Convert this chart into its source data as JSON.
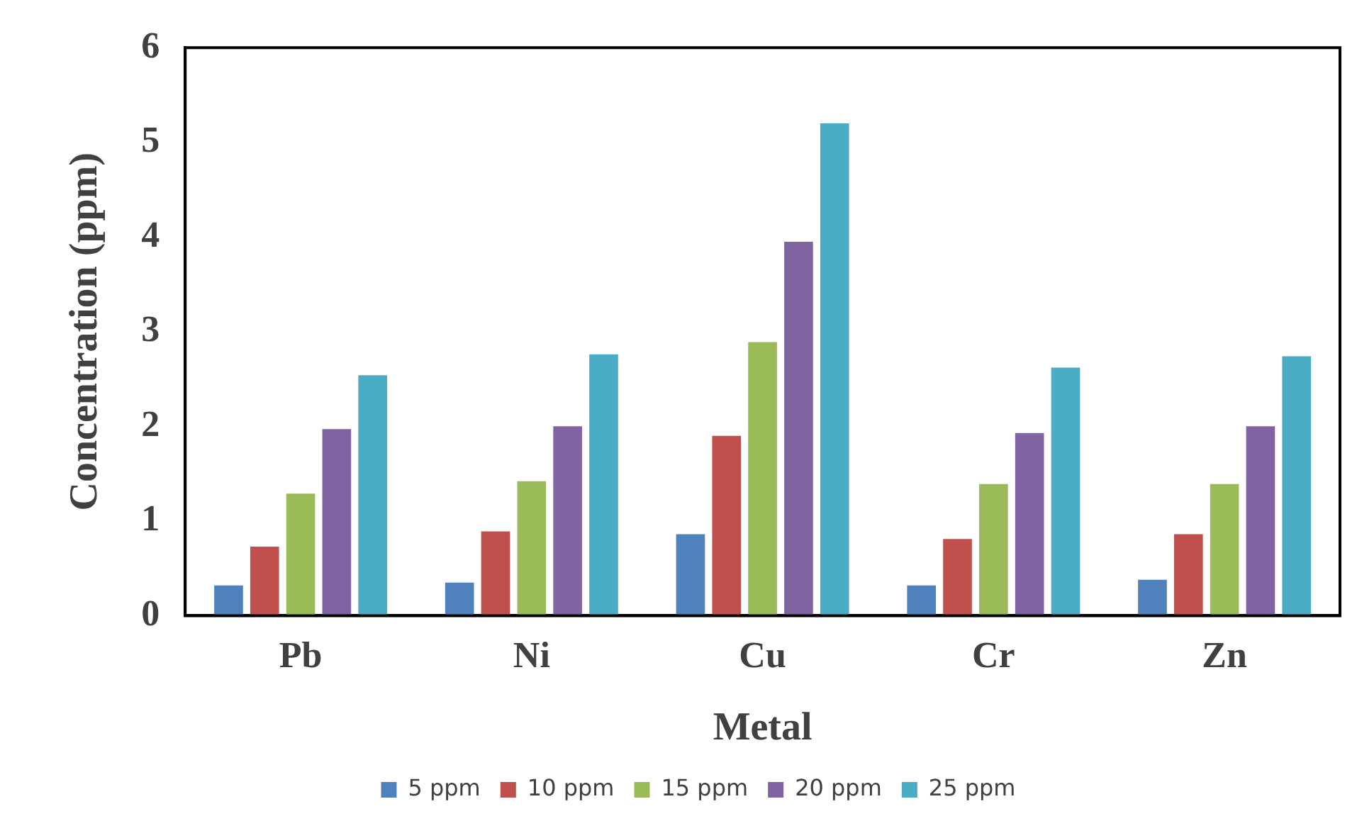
{
  "chart_data": {
    "type": "bar",
    "xlabel": "Metal",
    "ylabel": "Concentration (ppm)",
    "categories": [
      "Pb",
      "Ni",
      "Cu",
      "Cr",
      "Zn"
    ],
    "series": [
      {
        "name": "5 ppm",
        "color": "#4f81bd",
        "values": [
          0.32,
          0.35,
          0.86,
          0.32,
          0.38
        ]
      },
      {
        "name": "10 ppm",
        "color": "#c0504d",
        "values": [
          0.73,
          0.89,
          1.9,
          0.81,
          0.86
        ]
      },
      {
        "name": "15 ppm",
        "color": "#9bbb59",
        "values": [
          1.29,
          1.42,
          2.89,
          1.39,
          1.39
        ]
      },
      {
        "name": "20 ppm",
        "color": "#8064a2",
        "values": [
          1.97,
          2.0,
          3.95,
          1.93,
          2.0
        ]
      },
      {
        "name": "25 ppm",
        "color": "#4bacc6",
        "values": [
          2.54,
          2.76,
          5.2,
          2.62,
          2.74
        ]
      }
    ],
    "ylim": [
      0,
      6
    ],
    "yticks": [
      0,
      1,
      2,
      3,
      4,
      5,
      6
    ],
    "grid": false,
    "legend": "bottom"
  }
}
